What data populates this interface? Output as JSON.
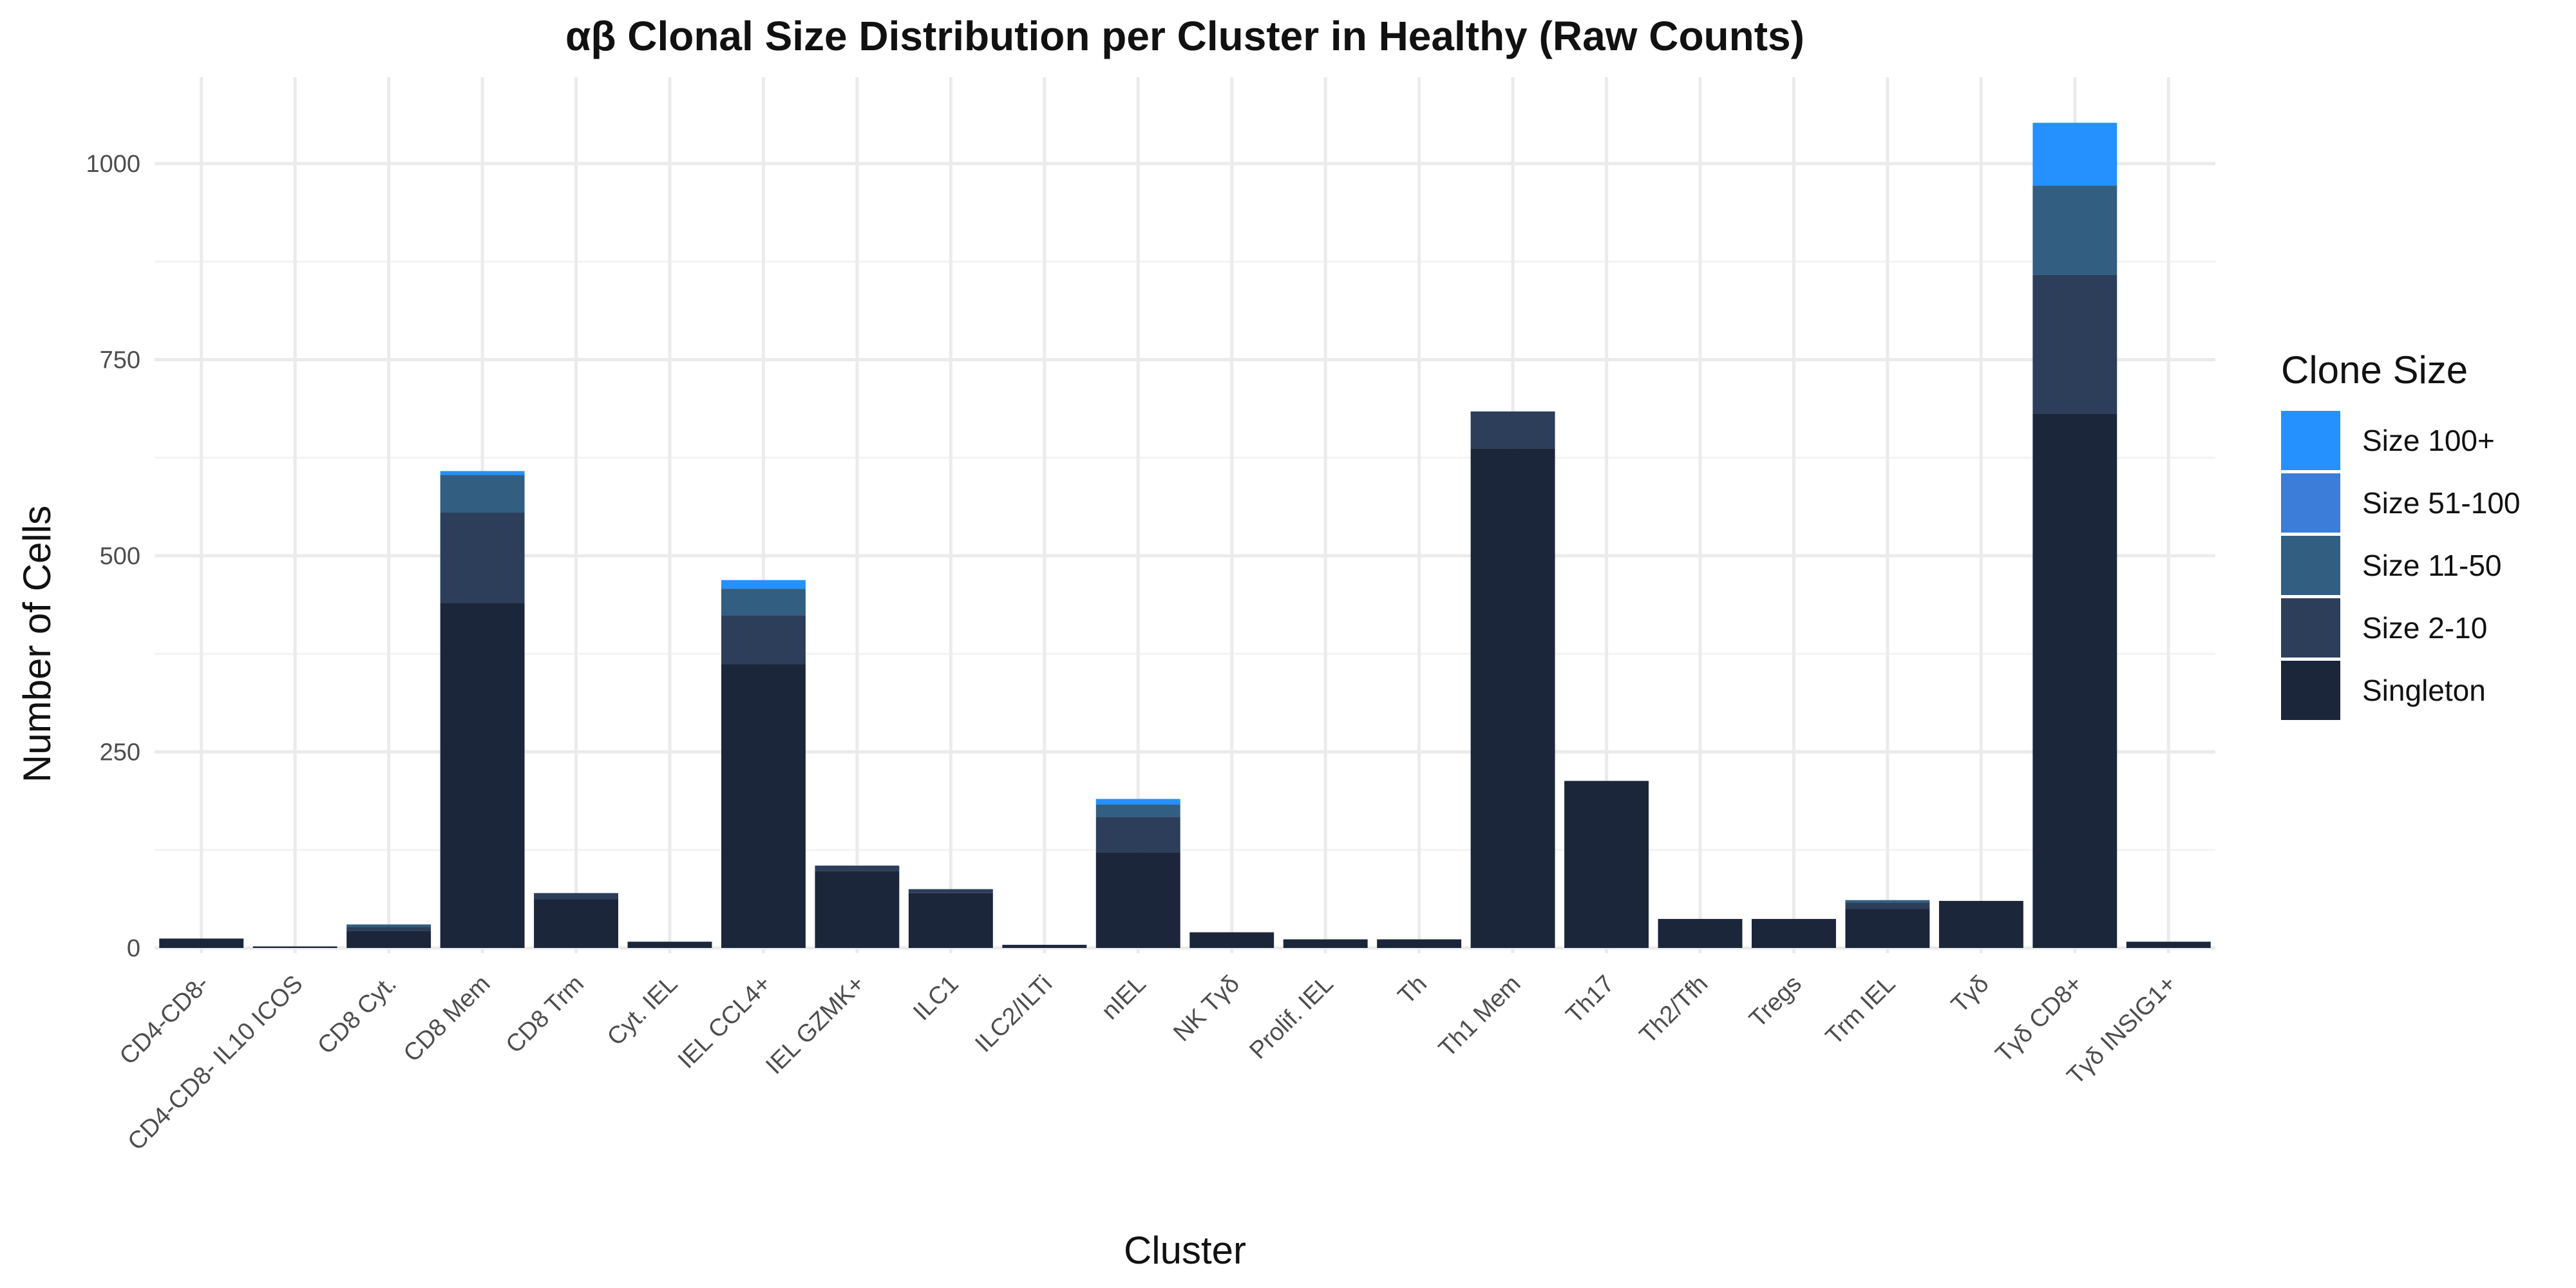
{
  "chart_data": {
    "type": "bar",
    "stacked": true,
    "title": "αβ Clonal Size Distribution per Cluster in Healthy (Raw Counts)",
    "xlabel": "Cluster",
    "ylabel": "Number of Cells",
    "ylim": [
      0,
      1100
    ],
    "yticks": [
      0,
      250,
      500,
      750,
      1000
    ],
    "grid": true,
    "legend": {
      "title": "Clone Size",
      "position": "right"
    },
    "categories": [
      "CD4-CD8-",
      "CD4-CD8- IL10 ICOS",
      "CD8 Cyt.",
      "CD8 Mem",
      "CD8 Trm",
      "Cyt. IEL",
      "IEL CCL4+",
      "IEL GZMK+",
      "ILC1",
      "ILC2/ILTi",
      "nIEL",
      "NK Tγδ",
      "Prolif. IEL",
      "Th",
      "Th1 Mem",
      "Th17",
      "Th2/Tfh",
      "Tregs",
      "Trm IEL",
      "Tγδ",
      "Tγδ CD8+",
      "Tγδ INSIG1+"
    ],
    "series": [
      {
        "name": "Singleton",
        "color": "#1b263b",
        "values": [
          12,
          2,
          22,
          440,
          62,
          8,
          362,
          98,
          70,
          4,
          122,
          20,
          11,
          11,
          637,
          213,
          37,
          37,
          50,
          60,
          681,
          8
        ]
      },
      {
        "name": "Size 2-10",
        "color": "#2c3e5a",
        "values": [
          0,
          0,
          5,
          115,
          8,
          0,
          62,
          7,
          5,
          0,
          45,
          0,
          0,
          0,
          47,
          0,
          0,
          0,
          8,
          0,
          177,
          0
        ]
      },
      {
        "name": "Size 11-50",
        "color": "#325e82",
        "values": [
          0,
          0,
          3,
          48,
          0,
          0,
          34,
          0,
          0,
          0,
          16,
          0,
          0,
          0,
          0,
          0,
          0,
          0,
          3,
          0,
          114,
          0
        ]
      },
      {
        "name": "Size 51-100",
        "color": "#3b7dd8",
        "values": [
          0,
          0,
          0,
          0,
          0,
          0,
          0,
          0,
          0,
          0,
          0,
          0,
          0,
          0,
          0,
          0,
          0,
          0,
          0,
          0,
          0,
          0
        ]
      },
      {
        "name": "Size 100+",
        "color": "#2491ff",
        "values": [
          0,
          0,
          0,
          5,
          0,
          0,
          11,
          0,
          0,
          0,
          7,
          0,
          0,
          0,
          0,
          0,
          0,
          0,
          0,
          0,
          80,
          0
        ]
      }
    ],
    "legend_order": [
      "Size 100+",
      "Size 51-100",
      "Size 11-50",
      "Size 2-10",
      "Singleton"
    ]
  }
}
